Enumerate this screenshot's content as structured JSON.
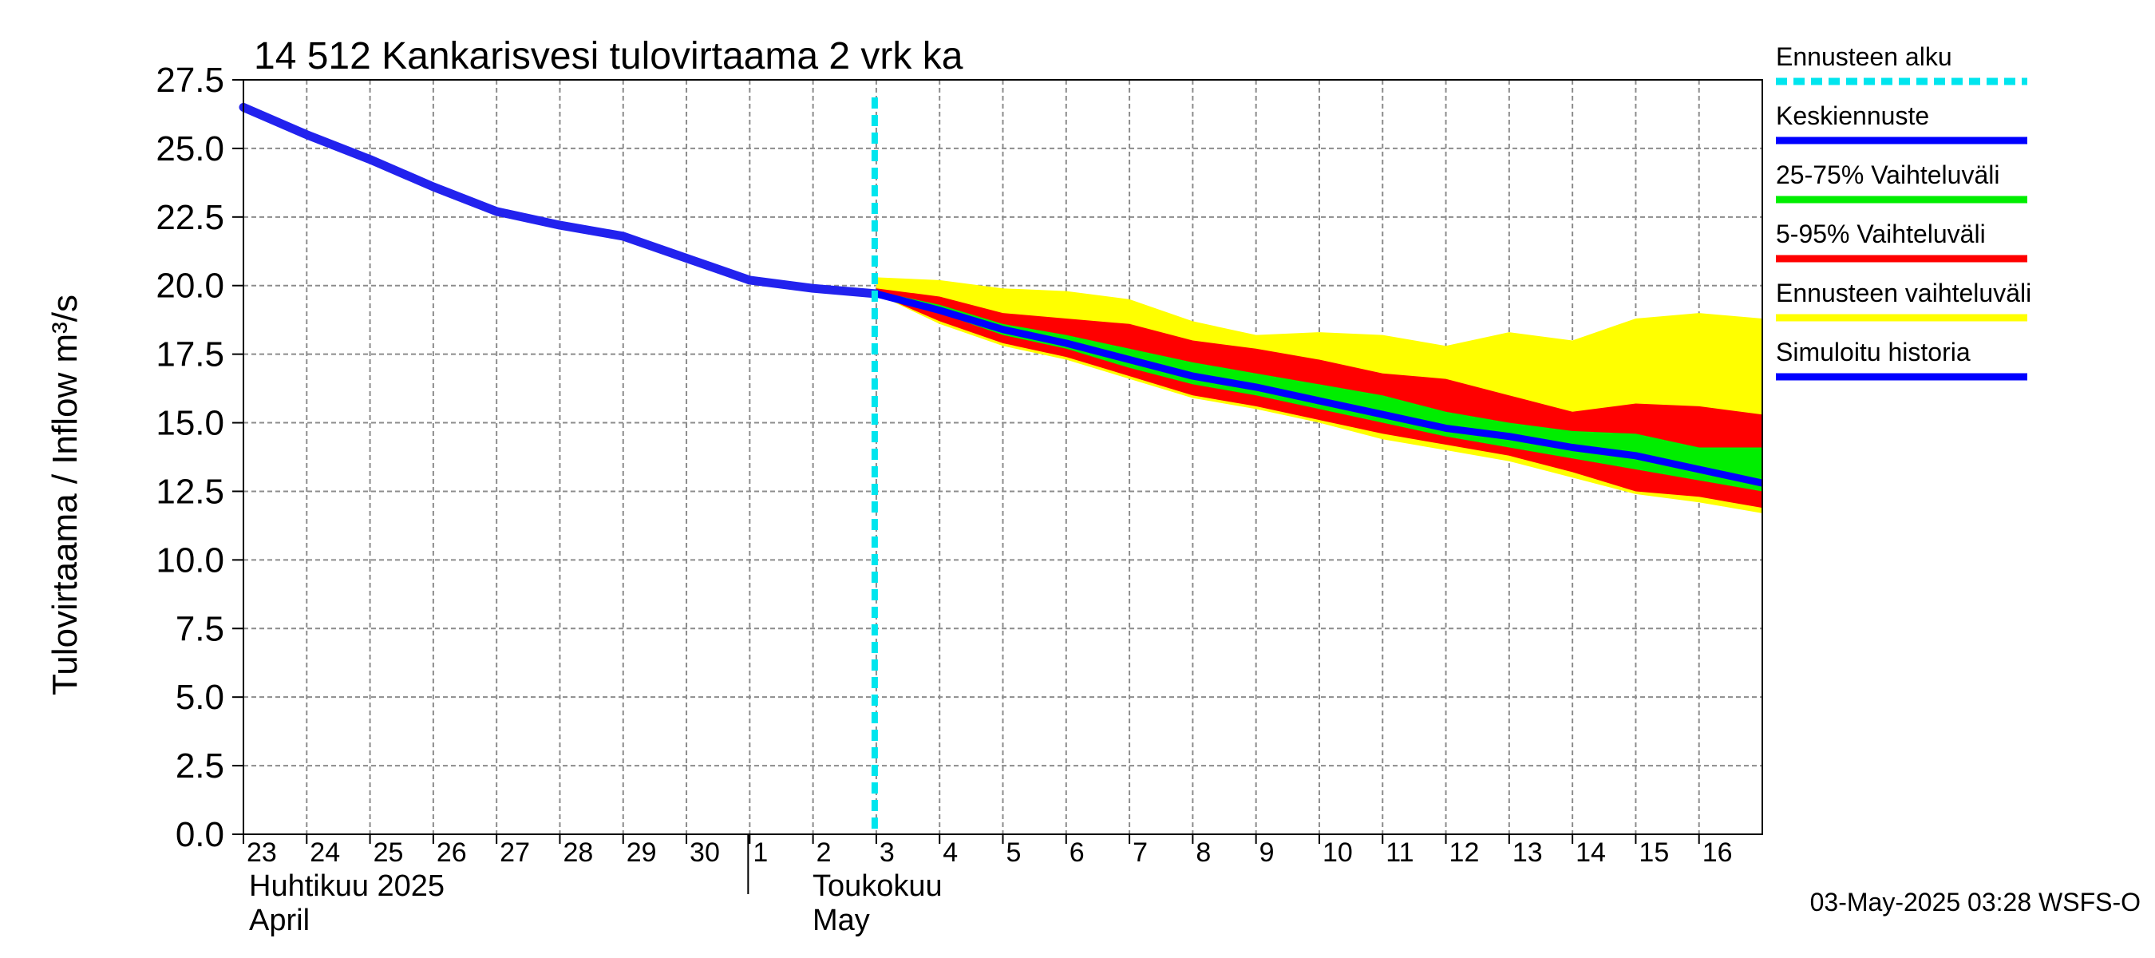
{
  "chart_data": {
    "type": "area",
    "title": "14 512 Kankarisvesi tulovirtaama 2 vrk ka",
    "ylabel": "Tulovirtaama / Inflow    m³/s",
    "ylim": [
      0,
      27.5
    ],
    "yticks": [
      0,
      2.5,
      5,
      7.5,
      10,
      12.5,
      15,
      17.5,
      20,
      22.5,
      25,
      27.5
    ],
    "ytick_labels": [
      "0.0",
      "2.5",
      "5.0",
      "7.5",
      "10.0",
      "12.5",
      "15.0",
      "17.5",
      "20.0",
      "22.5",
      "25.0",
      "27.5"
    ],
    "xlim": [
      0,
      24
    ],
    "x_ticks": [
      {
        "x": 0,
        "label": "23"
      },
      {
        "x": 1,
        "label": "24"
      },
      {
        "x": 2,
        "label": "25"
      },
      {
        "x": 3,
        "label": "26"
      },
      {
        "x": 4,
        "label": "27"
      },
      {
        "x": 5,
        "label": "28"
      },
      {
        "x": 6,
        "label": "29"
      },
      {
        "x": 7,
        "label": "30"
      },
      {
        "x": 8,
        "label": "1"
      },
      {
        "x": 9,
        "label": "2"
      },
      {
        "x": 10,
        "label": "3"
      },
      {
        "x": 11,
        "label": "4"
      },
      {
        "x": 12,
        "label": "5"
      },
      {
        "x": 13,
        "label": "6"
      },
      {
        "x": 14,
        "label": "7"
      },
      {
        "x": 15,
        "label": "8"
      },
      {
        "x": 16,
        "label": "9"
      },
      {
        "x": 17,
        "label": "10"
      },
      {
        "x": 18,
        "label": "11"
      },
      {
        "x": 19,
        "label": "12"
      },
      {
        "x": 20,
        "label": "13"
      },
      {
        "x": 21,
        "label": "14"
      },
      {
        "x": 22,
        "label": "15"
      },
      {
        "x": 23,
        "label": "16"
      }
    ],
    "month_labels": {
      "april_fi": "Huhtikuu  2025",
      "april_en": "April",
      "may_fi": "Toukokuu",
      "may_en": "May"
    },
    "month_boundary_x": 8,
    "forecast_start_x": 10,
    "history": {
      "name": "Simuloitu historia",
      "x": [
        0,
        1,
        2,
        3,
        4,
        5,
        6,
        7,
        8,
        9,
        10
      ],
      "y": [
        26.5,
        25.5,
        24.6,
        23.6,
        22.7,
        22.2,
        21.8,
        21.0,
        20.2,
        19.9,
        19.7
      ]
    },
    "series": [
      {
        "name": "Ennusteen vaihteluväli",
        "x": [
          10,
          11,
          12,
          13,
          14,
          15,
          16,
          17,
          18,
          19,
          20,
          21,
          22,
          23,
          24
        ],
        "upper": [
          20.3,
          20.2,
          19.9,
          19.8,
          19.5,
          18.7,
          18.2,
          18.3,
          18.2,
          17.8,
          18.3,
          18.0,
          18.8,
          19.0,
          18.8
        ],
        "lower": [
          19.7,
          18.6,
          17.8,
          17.3,
          16.6,
          15.9,
          15.5,
          15.0,
          14.4,
          14.0,
          13.6,
          13.0,
          12.4,
          12.1,
          11.7
        ]
      },
      {
        "name": "5-95% Vaihteluväli",
        "x": [
          10,
          11,
          12,
          13,
          14,
          15,
          16,
          17,
          18,
          19,
          20,
          21,
          22,
          23,
          24
        ],
        "upper": [
          19.9,
          19.6,
          19.0,
          18.8,
          18.6,
          18.0,
          17.7,
          17.3,
          16.8,
          16.6,
          16.0,
          15.4,
          15.7,
          15.6,
          15.3
        ],
        "lower": [
          19.7,
          18.7,
          17.9,
          17.4,
          16.7,
          16.0,
          15.6,
          15.1,
          14.6,
          14.2,
          13.8,
          13.2,
          12.5,
          12.3,
          11.9
        ]
      },
      {
        "name": "25-75% Vaihteluväli",
        "x": [
          10,
          11,
          12,
          13,
          14,
          15,
          16,
          17,
          18,
          19,
          20,
          21,
          22,
          23,
          24
        ],
        "upper": [
          19.8,
          19.3,
          18.6,
          18.2,
          17.7,
          17.2,
          16.8,
          16.4,
          16.0,
          15.4,
          15.0,
          14.7,
          14.6,
          14.1,
          14.1
        ],
        "lower": [
          19.7,
          19.0,
          18.2,
          17.7,
          17.0,
          16.4,
          16.0,
          15.5,
          15.0,
          14.5,
          14.1,
          13.7,
          13.3,
          12.9,
          12.5
        ]
      },
      {
        "name": "Keskiennuste",
        "x": [
          10,
          11,
          12,
          13,
          14,
          15,
          16,
          17,
          18,
          19,
          20,
          21,
          22,
          23,
          24
        ],
        "y": [
          19.7,
          19.1,
          18.4,
          17.9,
          17.3,
          16.7,
          16.3,
          15.8,
          15.3,
          14.8,
          14.5,
          14.1,
          13.8,
          13.3,
          12.8
        ]
      }
    ],
    "legend": [
      {
        "label": "Ennusteen alku",
        "color": "#00e5ee",
        "style": "dashed"
      },
      {
        "label": "Keskiennuste",
        "color": "#0000ff",
        "style": "solid"
      },
      {
        "label": "25-75% Vaihteluväli",
        "color": "#00ee00",
        "style": "solid"
      },
      {
        "label": "5-95% Vaihteluväli",
        "color": "#ff0000",
        "style": "solid"
      },
      {
        "label": "Ennusteen vaihteluväli",
        "color": "#ffff00",
        "style": "solid"
      },
      {
        "label": "Simuloitu historia",
        "color": "#0000ff",
        "style": "solid"
      }
    ],
    "legend_position": "right",
    "colors": {
      "yellow": "#ffff00",
      "red": "#ff0000",
      "green": "#00ee00",
      "blue": "#0000ff",
      "history": "#2222ee",
      "forecast_start": "#00e5ee"
    },
    "footer": "03-May-2025 03:28 WSFS-O"
  }
}
